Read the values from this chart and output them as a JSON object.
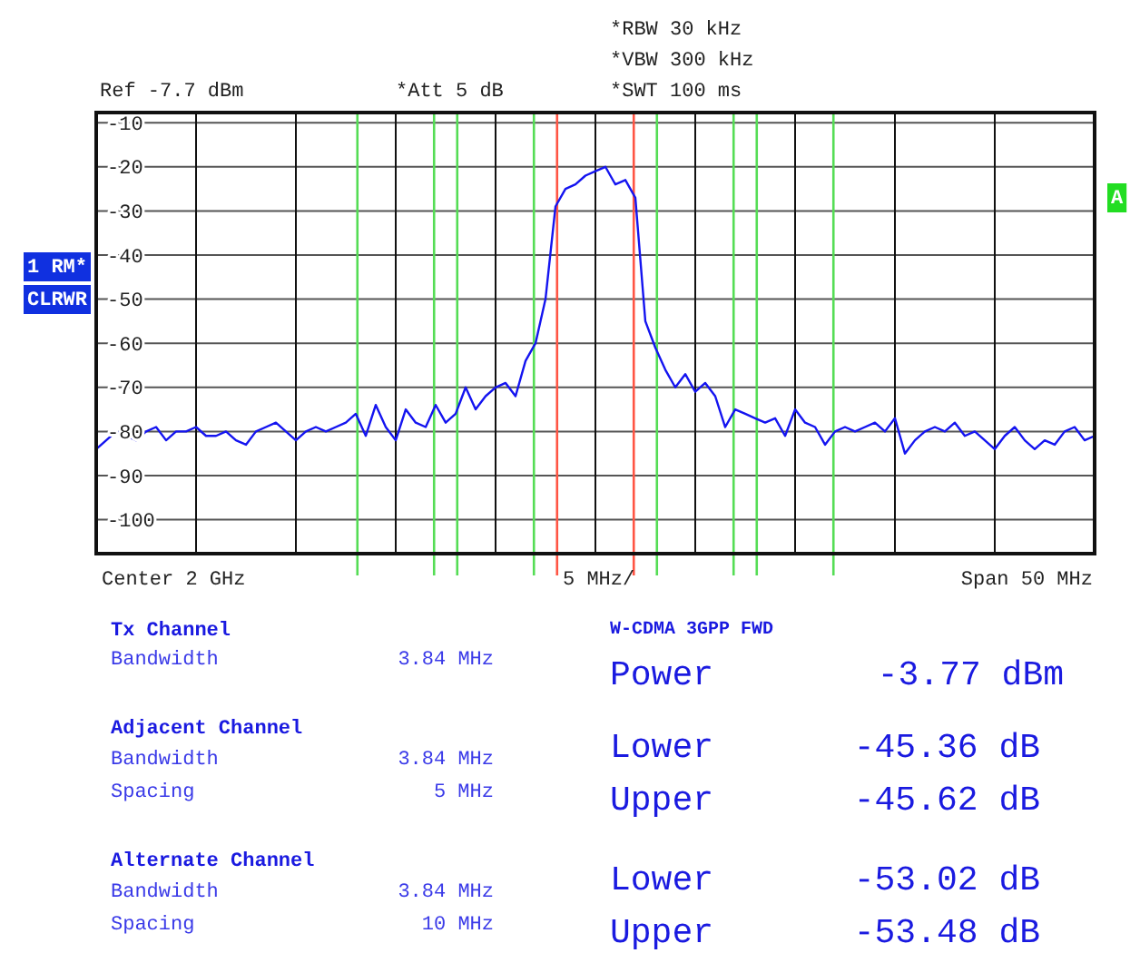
{
  "chart_data": {
    "type": "line",
    "categories": [
      null,
      null,
      null,
      null,
      null,
      null,
      null,
      null,
      null,
      null,
      null,
      null,
      null,
      null,
      null,
      null,
      null,
      null,
      null,
      null,
      null,
      null,
      null,
      null,
      null,
      null,
      null,
      null,
      null,
      null,
      null,
      null,
      null,
      null,
      null,
      null,
      null,
      null,
      null,
      null,
      null,
      null,
      null,
      null,
      null,
      null,
      null,
      null,
      null,
      null,
      null,
      null,
      null,
      null,
      null,
      null,
      null,
      null,
      null,
      null,
      null,
      null,
      null,
      null,
      null,
      null,
      null,
      null,
      null,
      null,
      null,
      null,
      null,
      null,
      null,
      null,
      null,
      null,
      null,
      null,
      null,
      null,
      null,
      null,
      null,
      null,
      null,
      null,
      null,
      null,
      null,
      null,
      null,
      null,
      null,
      null,
      null,
      null,
      null,
      null,
      null
    ],
    "series": [
      {
        "color": "#1414f0",
        "values": [
          -84,
          -82,
          -80,
          -81,
          -82,
          -80,
          -79,
          -82,
          -80,
          -80,
          -79,
          -81,
          -81,
          -80,
          -82,
          -83,
          -80,
          -79,
          -78,
          -80,
          -82,
          -80,
          -79,
          -80,
          -79,
          -78,
          -76,
          -81,
          -74,
          -79,
          -82,
          -75,
          -78,
          -79,
          -74,
          -78,
          -76,
          -70,
          -75,
          -72,
          -70,
          -69,
          -72,
          -64,
          -60,
          -50,
          -29,
          -25,
          -24,
          -22,
          -21,
          -20,
          -24,
          -23,
          -27,
          -55,
          -61,
          -66,
          -70,
          -67,
          -71,
          -69,
          -72,
          -79,
          -75,
          -76,
          -77,
          -78,
          -77,
          -81,
          -75,
          -78,
          -79,
          -83,
          -80,
          -79,
          -80,
          -79,
          -78,
          -80,
          -77,
          -85,
          -82,
          -80,
          -79,
          -80,
          -78,
          -81,
          -80,
          -82,
          -84,
          -81,
          -79,
          -82,
          -84,
          -82,
          -83,
          -80,
          -79,
          -82,
          -81
        ]
      }
    ],
    "ylim": [
      -107.7,
      -7.7
    ],
    "yticks": [
      -10,
      -20,
      -30,
      -40,
      -50,
      -60,
      -70,
      -80,
      -90,
      -100
    ],
    "grid": true,
    "annotations": [
      "Ref -7.7 dBm",
      "*Att 5 dB",
      "*RBW 30 kHz",
      "*VBW 300 kHz",
      "*SWT 100 ms",
      "1 RM*",
      "CLRWR",
      "A",
      "Center 2 GHz",
      "5 MHz/",
      "Span 50 MHz",
      "Tx Channel",
      "Bandwidth",
      "3.84 MHz",
      "Adjacent Channel",
      "Bandwidth",
      "3.84 MHz",
      "Spacing",
      "5 MHz",
      "Alternate Channel",
      "Bandwidth",
      "3.84 MHz",
      "Spacing",
      "10 MHz",
      "W-CDMA 3GPP FWD",
      "Power",
      "-3.77 dBm",
      "Lower",
      "-45.36 dB",
      "Upper",
      "-45.62 dB",
      "Lower",
      "-53.02 dB",
      "Upper",
      "-53.48 dB"
    ]
  }
}
